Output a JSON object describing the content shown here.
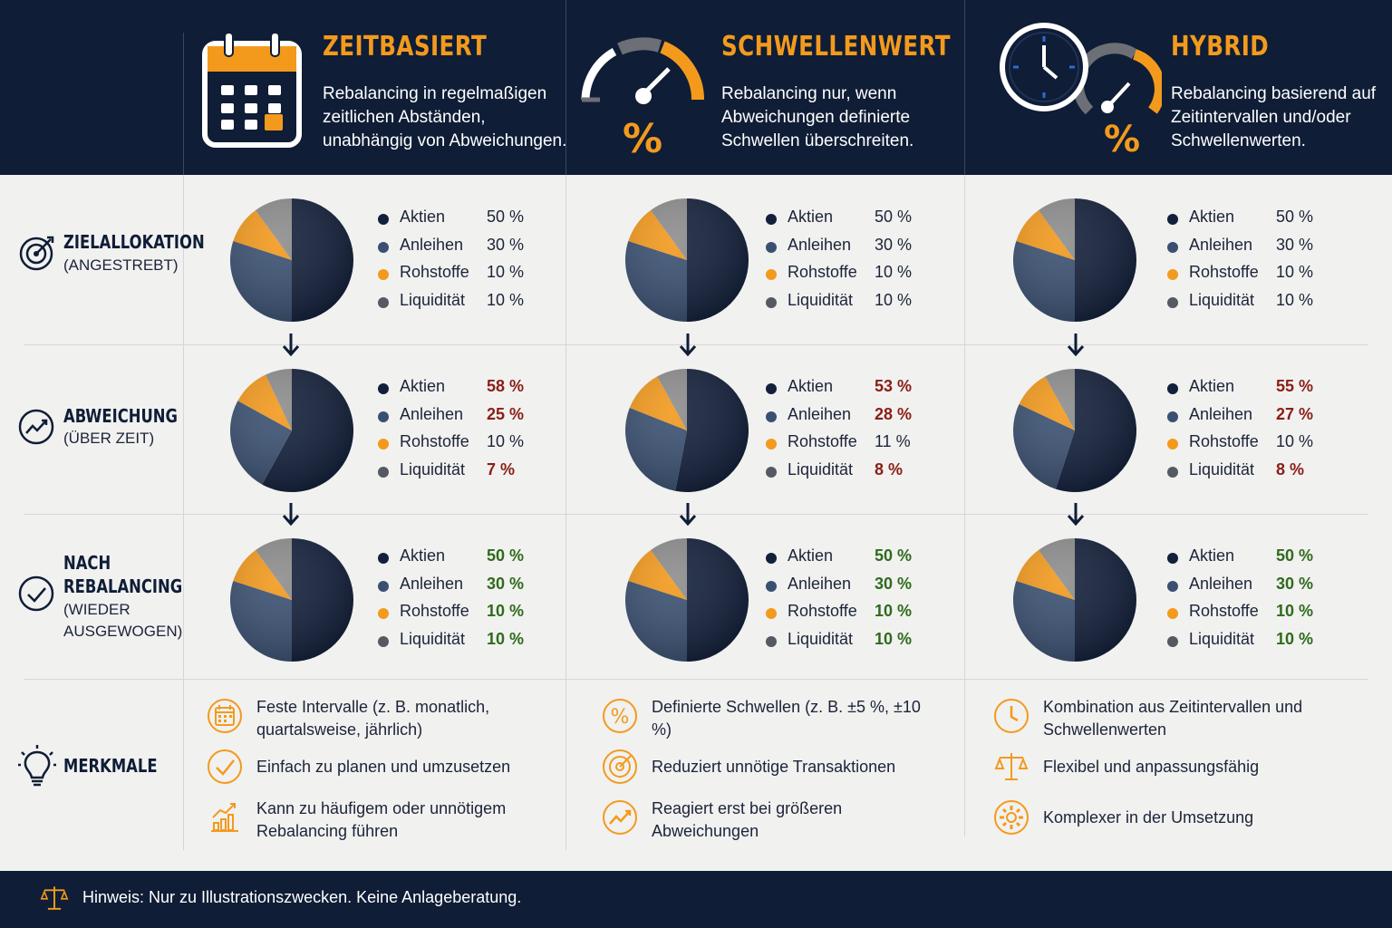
{
  "colors": {
    "navy": "#0f1d36",
    "aktien": "#13203b",
    "anleihen": "#3a5071",
    "rohstoffe": "#f39a1d",
    "liquiditaet": "#8d8d8d",
    "deviation_red": "#8a1e16",
    "rebalanced_green": "#2f6b1c"
  },
  "columns": [
    {
      "title": "ZEITBASIERT",
      "description": "Rebalancing in regelmaßigen zeitlichen Abständen, unabhängig von Abweichungen.",
      "icon": "calendar-icon"
    },
    {
      "title": "SCHWELLENWERT",
      "description": "Rebalancing nur, wenn Abweichungen definierte Schwellen überschreiten.",
      "icon": "gauge-percent-icon"
    },
    {
      "title": "HYBRID",
      "description": "Rebalancing basierend auf Zeitintervallen und/oder Schwellenwerten.",
      "icon": "clock-gauge-icon"
    }
  ],
  "rows": [
    {
      "label": "ZIELALLOKATION",
      "sub": "(ANGESTREBT)",
      "icon": "target-icon"
    },
    {
      "label": "ABWEICHUNG",
      "sub": "(ÜBER ZEIT)",
      "icon": "trend-chart-icon"
    },
    {
      "label": "NACH REBALANCING",
      "label_line1": "NACH",
      "label_line2": "REBALANCING",
      "sub": "(WIEDER AUSGEWOGEN)",
      "sub_line1": "(WIEDER",
      "sub_line2": "AUSGEWOGEN)",
      "icon": "check-circle-icon"
    },
    {
      "label": "MERKMALE",
      "icon": "lightbulb-icon"
    }
  ],
  "chart_data": [
    {
      "type": "pie",
      "strategy": "ZEITBASIERT",
      "stage": "ZIELALLOKATION",
      "categories": [
        "Aktien",
        "Anleihen",
        "Rohstoffe",
        "Liquidität"
      ],
      "values": [
        50,
        30,
        10,
        10
      ],
      "labels": [
        "50 %",
        "30 %",
        "10 %",
        "10 %"
      ],
      "status": [
        "normal",
        "normal",
        "normal",
        "normal"
      ]
    },
    {
      "type": "pie",
      "strategy": "SCHWELLENWERT",
      "stage": "ZIELALLOKATION",
      "categories": [
        "Aktien",
        "Anleihen",
        "Rohstoffe",
        "Liquidität"
      ],
      "values": [
        50,
        30,
        10,
        10
      ],
      "labels": [
        "50 %",
        "30 %",
        "10 %",
        "10 %"
      ],
      "status": [
        "normal",
        "normal",
        "normal",
        "normal"
      ]
    },
    {
      "type": "pie",
      "strategy": "HYBRID",
      "stage": "ZIELALLOKATION",
      "categories": [
        "Aktien",
        "Anleihen",
        "Rohstoffe",
        "Liquidität"
      ],
      "values": [
        50,
        30,
        10,
        10
      ],
      "labels": [
        "50 %",
        "30 %",
        "10 %",
        "10 %"
      ],
      "status": [
        "normal",
        "normal",
        "normal",
        "normal"
      ]
    },
    {
      "type": "pie",
      "strategy": "ZEITBASIERT",
      "stage": "ABWEICHUNG",
      "categories": [
        "Aktien",
        "Anleihen",
        "Rohstoffe",
        "Liquidität"
      ],
      "values": [
        58,
        25,
        10,
        7
      ],
      "labels": [
        "58 %",
        "25 %",
        "10 %",
        "7 %"
      ],
      "status": [
        "red",
        "red",
        "normal",
        "red"
      ]
    },
    {
      "type": "pie",
      "strategy": "SCHWELLENWERT",
      "stage": "ABWEICHUNG",
      "categories": [
        "Aktien",
        "Anleihen",
        "Rohstoffe",
        "Liquidität"
      ],
      "values": [
        53,
        28,
        11,
        8
      ],
      "labels": [
        "53 %",
        "28 %",
        "11 %",
        "8 %"
      ],
      "status": [
        "red",
        "red",
        "normal",
        "red"
      ]
    },
    {
      "type": "pie",
      "strategy": "HYBRID",
      "stage": "ABWEICHUNG",
      "categories": [
        "Aktien",
        "Anleihen",
        "Rohstoffe",
        "Liquidität"
      ],
      "values": [
        55,
        27,
        10,
        8
      ],
      "labels": [
        "55 %",
        "27 %",
        "10 %",
        "8 %"
      ],
      "status": [
        "red",
        "red",
        "normal",
        "red"
      ]
    },
    {
      "type": "pie",
      "strategy": "ZEITBASIERT",
      "stage": "NACH REBALANCING",
      "categories": [
        "Aktien",
        "Anleihen",
        "Rohstoffe",
        "Liquidität"
      ],
      "values": [
        50,
        30,
        10,
        10
      ],
      "labels": [
        "50 %",
        "30 %",
        "10 %",
        "10 %"
      ],
      "status": [
        "green",
        "green",
        "green",
        "green"
      ]
    },
    {
      "type": "pie",
      "strategy": "SCHWELLENWERT",
      "stage": "NACH REBALANCING",
      "categories": [
        "Aktien",
        "Anleihen",
        "Rohstoffe",
        "Liquidität"
      ],
      "values": [
        50,
        30,
        10,
        10
      ],
      "labels": [
        "50 %",
        "30 %",
        "10 %",
        "10 %"
      ],
      "status": [
        "green",
        "green",
        "green",
        "green"
      ]
    },
    {
      "type": "pie",
      "strategy": "HYBRID",
      "stage": "NACH REBALANCING",
      "categories": [
        "Aktien",
        "Anleihen",
        "Rohstoffe",
        "Liquidität"
      ],
      "values": [
        50,
        30,
        10,
        10
      ],
      "labels": [
        "50 %",
        "30 %",
        "10 %",
        "10 %"
      ],
      "status": [
        "green",
        "green",
        "green",
        "green"
      ]
    }
  ],
  "features": [
    [
      {
        "icon": "calendar-icon",
        "text": "Feste Intervalle (z. B. monatlich, quartalsweise, jährlich)"
      },
      {
        "icon": "check-circle-icon",
        "text": "Einfach zu planen und umzusetzen"
      },
      {
        "icon": "bar-chart-up-icon",
        "text": "Kann zu häufigem oder unnötigem Rebalancing führen"
      }
    ],
    [
      {
        "icon": "percent-circle-icon",
        "text": "Definierte Schwellen (z. B. ±5 %, ±10 %)"
      },
      {
        "icon": "target-icon",
        "text": "Reduziert unnötige Transaktionen"
      },
      {
        "icon": "trend-up-icon",
        "text": "Reagiert erst bei größeren Abweichungen"
      }
    ],
    [
      {
        "icon": "clock-icon",
        "text": "Kombination aus Zeitintervallen und Schwellenwerten"
      },
      {
        "icon": "scale-icon",
        "text": "Flexibel und anpassungsfähig"
      },
      {
        "icon": "gear-icon",
        "text": "Komplexer in der Umsetzung"
      }
    ]
  ],
  "footer": {
    "icon": "scale-icon",
    "text": "Hinweis: Nur zu Illustrationszwecken. Keine Anlageberatung."
  }
}
